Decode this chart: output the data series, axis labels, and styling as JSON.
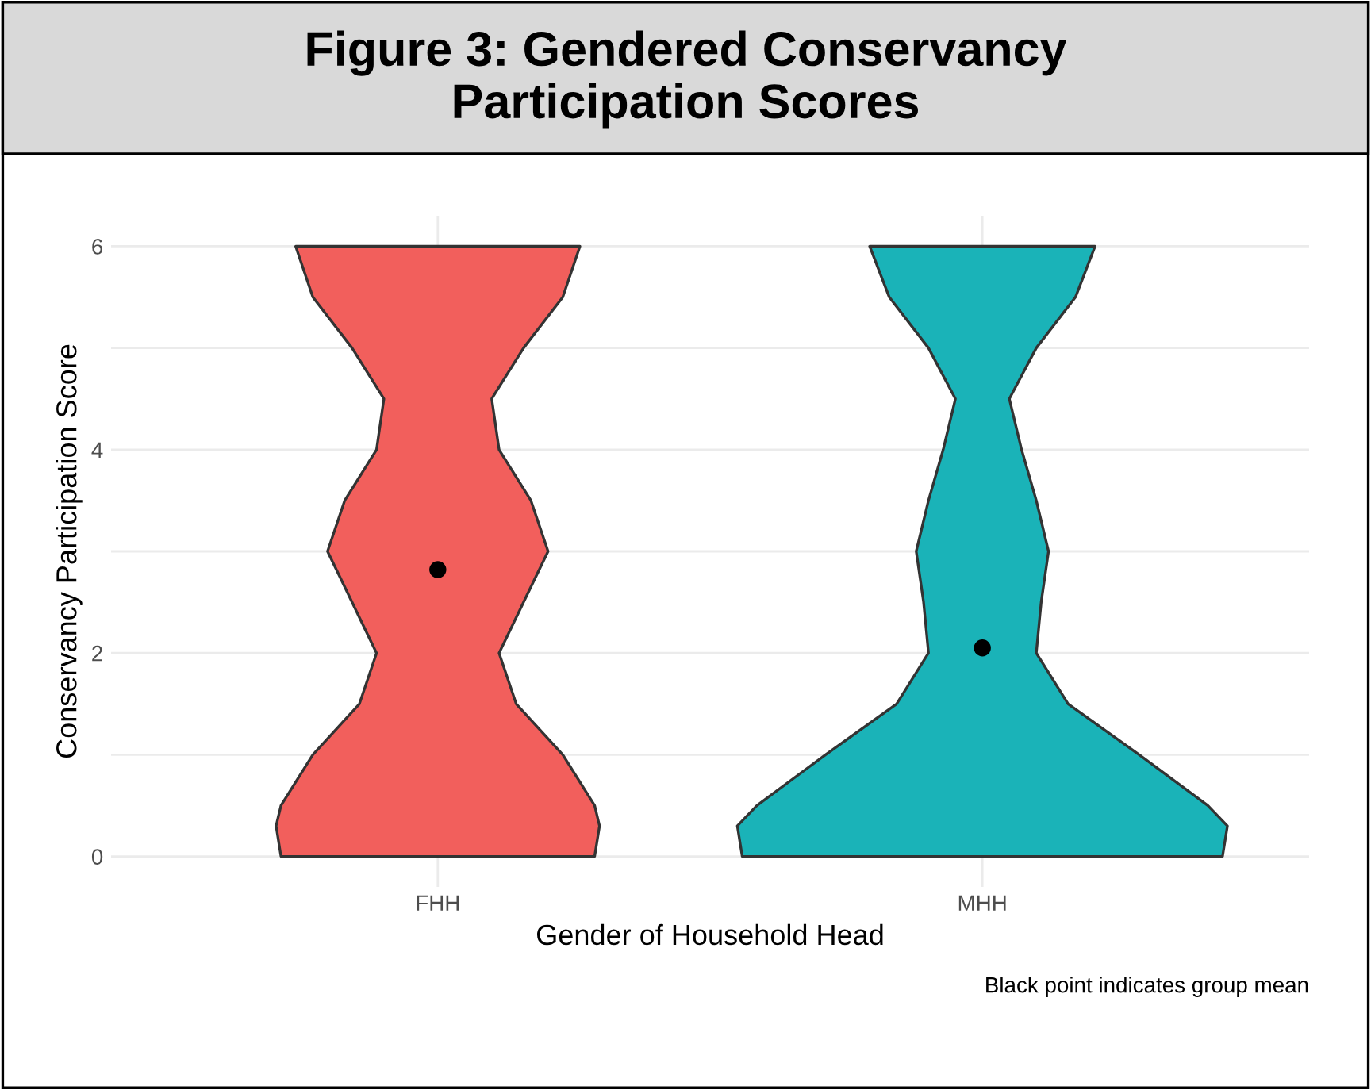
{
  "chart_data": {
    "type": "scatter",
    "title": "Figure 3: Gendered Conservancy\nParticipation Scores",
    "xlabel": "Gender of Household Head",
    "ylabel": "Conservancy Participation Score",
    "categories": [
      "FHH",
      "MHH"
    ],
    "ylim": [
      -0.3,
      6.3
    ],
    "yticks": [
      0,
      {
        "value": 1,
        "label": null
      },
      2,
      {
        "value": 3,
        "label": null
      },
      4,
      {
        "value": 5,
        "label": null
      },
      6
    ],
    "grid": true,
    "annotations": [
      "Black point indicates group mean"
    ],
    "marker": "circle",
    "series": [
      {
        "color": "#000000",
        "values": [
          2.82,
          2.05
        ]
      }
    ]
  }
}
